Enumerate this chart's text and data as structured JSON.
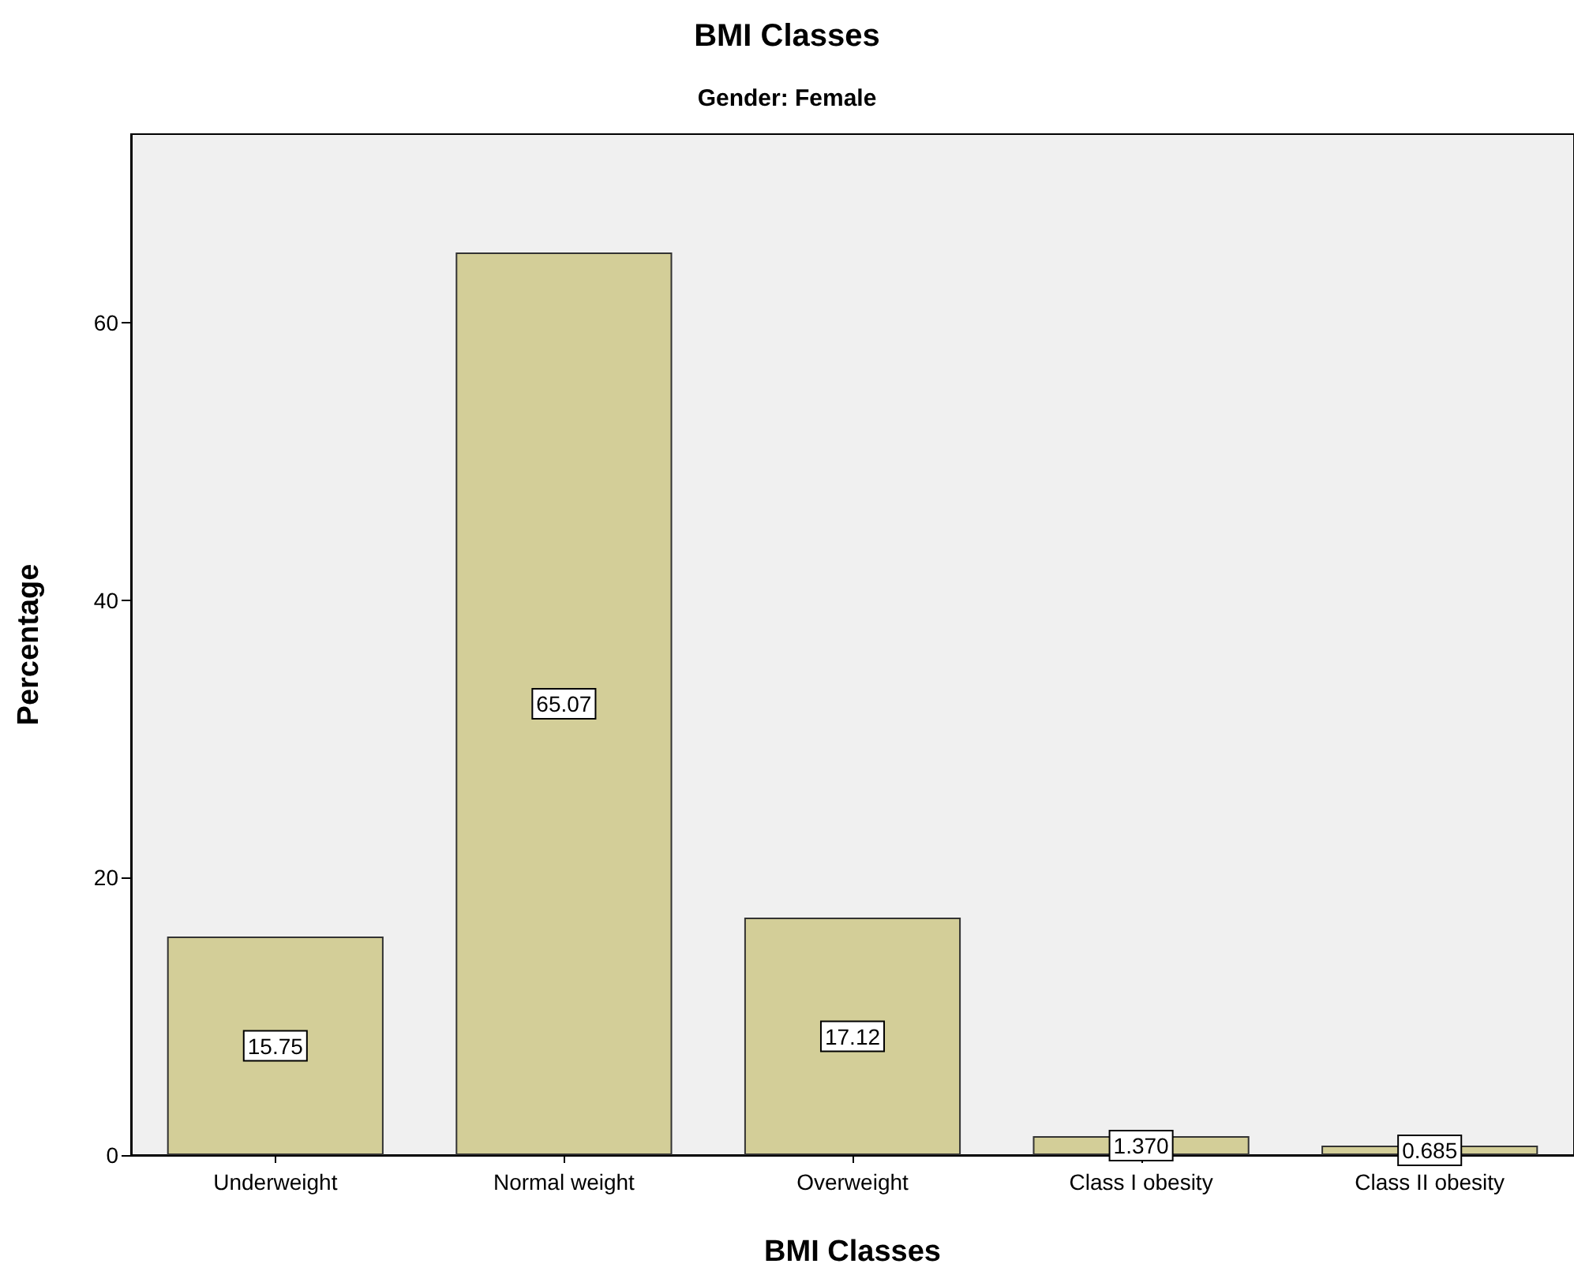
{
  "chart_data": {
    "type": "bar",
    "title": "BMI Classes",
    "subtitle": "Gender: Female",
    "xlabel": "BMI Classes",
    "ylabel": "Percentage",
    "categories": [
      "Underweight",
      "Normal weight",
      "Overweight",
      "Class I obesity",
      "Class II obesity"
    ],
    "values": [
      15.75,
      65.07,
      17.12,
      1.37,
      0.685
    ],
    "value_labels": [
      "15.75",
      "65.07",
      "17.12",
      "1.370",
      "0.685"
    ],
    "color": "#d3ce98",
    "ylim": [
      0,
      73.6
    ],
    "yticks": [
      0,
      20,
      40,
      60
    ],
    "grid": false
  }
}
